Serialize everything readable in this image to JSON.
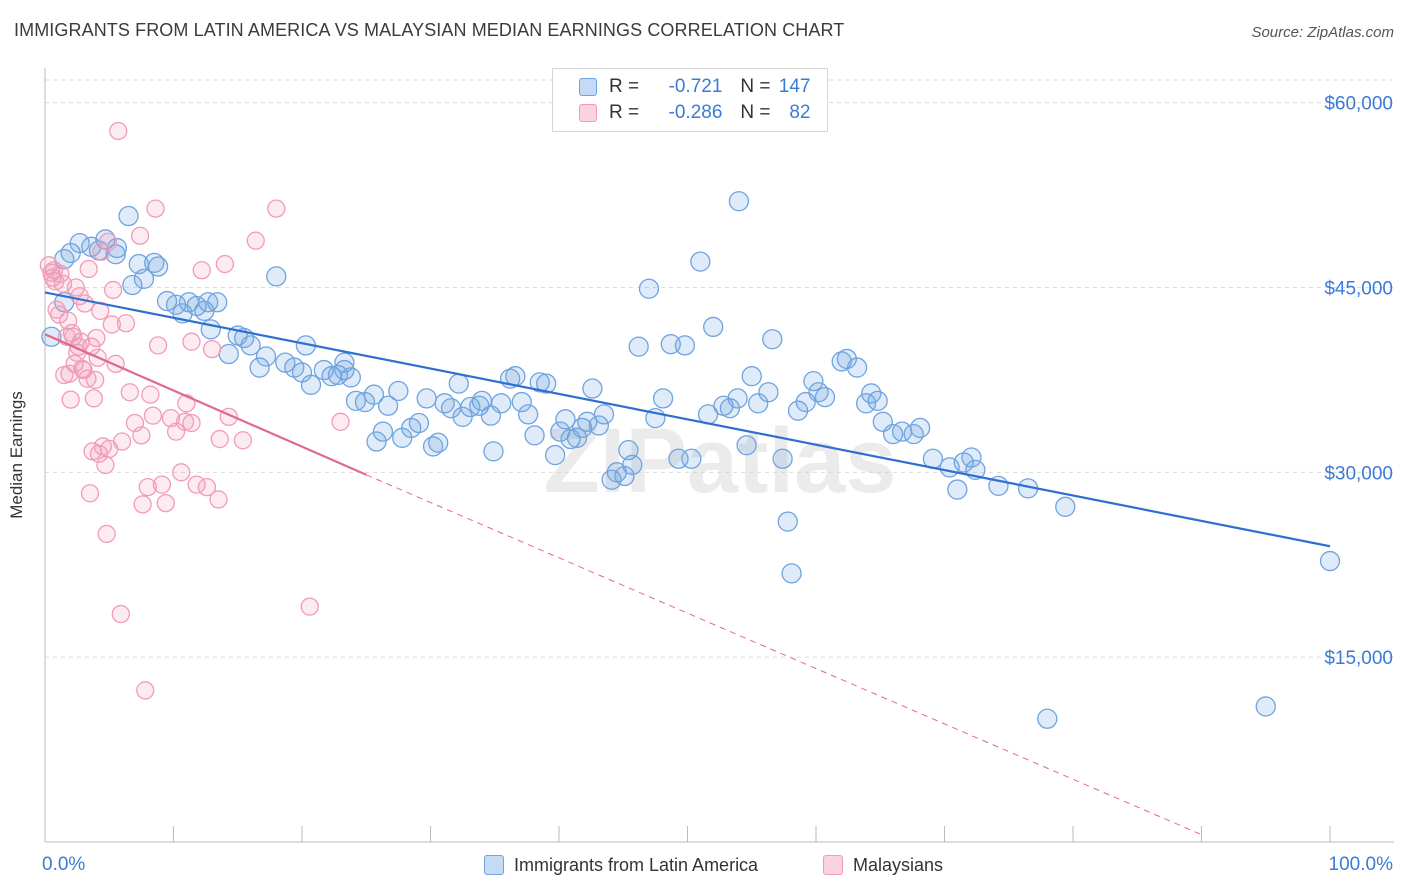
{
  "title": "IMMIGRANTS FROM LATIN AMERICA VS MALAYSIAN MEDIAN EARNINGS CORRELATION CHART",
  "source": "Source: ZipAtlas.com",
  "watermark": "ZIPatlas",
  "colors": {
    "blue": "#6fa4e0",
    "blue_line": "#2f6fd0",
    "pink": "#f29bb8",
    "pink_line": "#e0698f",
    "axis_text": "#3a7bd5",
    "grid": "#dcdcdc"
  },
  "legend": {
    "rows": [
      {
        "r_label": "R =",
        "r_value": "-0.721",
        "n_label": "N =",
        "n_value": "147",
        "color": "blue"
      },
      {
        "r_label": "R =",
        "r_value": "-0.286",
        "n_label": "N =",
        "n_value": "82",
        "color": "pink"
      }
    ]
  },
  "chart_data": {
    "type": "scatter",
    "xlabel": "",
    "ylabel": "Median Earnings",
    "xlim": [
      0,
      100
    ],
    "ylim": [
      0,
      62000
    ],
    "x_tick_labels": [
      "0.0%",
      "100.0%"
    ],
    "y_ticks": [
      15000,
      30000,
      45000,
      60000
    ],
    "y_tick_labels": [
      "$15,000",
      "$30,000",
      "$45,000",
      "$60,000"
    ],
    "grid": "horizontal dashed",
    "legend_position": "top-center",
    "series": [
      {
        "name": "Immigrants from Latin America",
        "color": "blue",
        "trend": {
          "x": [
            0,
            100
          ],
          "y": [
            44600,
            24000
          ]
        },
        "points": [
          [
            0.5,
            41000
          ],
          [
            1.5,
            43800
          ],
          [
            1.5,
            47300
          ],
          [
            2,
            47800
          ],
          [
            2.7,
            48600
          ],
          [
            3.6,
            48300
          ],
          [
            4.2,
            48000
          ],
          [
            4.7,
            48900
          ],
          [
            5.5,
            47700
          ],
          [
            5.6,
            48200
          ],
          [
            6.5,
            50800
          ],
          [
            6.8,
            45200
          ],
          [
            7.3,
            46900
          ],
          [
            7.7,
            45700
          ],
          [
            8.5,
            47000
          ],
          [
            8.8,
            46700
          ],
          [
            9.5,
            43900
          ],
          [
            10.2,
            43600
          ],
          [
            10.7,
            42900
          ],
          [
            11.2,
            43800
          ],
          [
            11.8,
            43500
          ],
          [
            12.4,
            43100
          ],
          [
            12.7,
            43800
          ],
          [
            13.4,
            43800
          ],
          [
            12.9,
            41600
          ],
          [
            14.3,
            39600
          ],
          [
            15.0,
            41100
          ],
          [
            15.5,
            40900
          ],
          [
            16.0,
            40300
          ],
          [
            16.7,
            38500
          ],
          [
            17.2,
            39400
          ],
          [
            18.0,
            45900
          ],
          [
            18.7,
            38900
          ],
          [
            19.4,
            38500
          ],
          [
            20.0,
            38100
          ],
          [
            20.3,
            40300
          ],
          [
            20.7,
            37100
          ],
          [
            21.7,
            38300
          ],
          [
            22.3,
            37800
          ],
          [
            22.8,
            37900
          ],
          [
            23.3,
            38300
          ],
          [
            23.8,
            37700
          ],
          [
            23.3,
            38900
          ],
          [
            24.2,
            35800
          ],
          [
            24.9,
            35700
          ],
          [
            25.6,
            36300
          ],
          [
            25.8,
            32500
          ],
          [
            26.3,
            33300
          ],
          [
            26.7,
            35400
          ],
          [
            27.5,
            36600
          ],
          [
            27.8,
            32800
          ],
          [
            28.5,
            33600
          ],
          [
            29.1,
            34000
          ],
          [
            29.7,
            36000
          ],
          [
            30.2,
            32100
          ],
          [
            30.6,
            32400
          ],
          [
            31.1,
            35600
          ],
          [
            31.6,
            35200
          ],
          [
            32.2,
            37200
          ],
          [
            32.5,
            34500
          ],
          [
            33.1,
            35300
          ],
          [
            33.8,
            35400
          ],
          [
            34.0,
            35800
          ],
          [
            34.7,
            34600
          ],
          [
            34.9,
            31700
          ],
          [
            35.5,
            35600
          ],
          [
            36.2,
            37600
          ],
          [
            36.6,
            37800
          ],
          [
            37.1,
            35700
          ],
          [
            37.6,
            34700
          ],
          [
            38.1,
            33000
          ],
          [
            38.5,
            37300
          ],
          [
            39.0,
            37200
          ],
          [
            39.7,
            31400
          ],
          [
            40.1,
            33300
          ],
          [
            40.5,
            34300
          ],
          [
            40.9,
            32700
          ],
          [
            41.4,
            32800
          ],
          [
            41.8,
            33600
          ],
          [
            42.2,
            34100
          ],
          [
            42.6,
            36800
          ],
          [
            43.1,
            33800
          ],
          [
            43.5,
            34700
          ],
          [
            44.1,
            29400
          ],
          [
            44.5,
            30000
          ],
          [
            45.1,
            29700
          ],
          [
            45.4,
            31800
          ],
          [
            45.7,
            30600
          ],
          [
            46.2,
            40200
          ],
          [
            47.0,
            44900
          ],
          [
            47.5,
            34400
          ],
          [
            48.1,
            36000
          ],
          [
            48.7,
            40400
          ],
          [
            49.3,
            31100
          ],
          [
            49.8,
            40300
          ],
          [
            50.3,
            31100
          ],
          [
            51.0,
            47100
          ],
          [
            51.6,
            34700
          ],
          [
            52.0,
            41800
          ],
          [
            52.8,
            35400
          ],
          [
            53.3,
            35200
          ],
          [
            53.9,
            36000
          ],
          [
            54.0,
            52000
          ],
          [
            54.6,
            32200
          ],
          [
            55.0,
            37800
          ],
          [
            55.5,
            35600
          ],
          [
            56.3,
            36500
          ],
          [
            56.6,
            40800
          ],
          [
            57.4,
            31100
          ],
          [
            57.8,
            26000
          ],
          [
            58.1,
            21800
          ],
          [
            58.6,
            35000
          ],
          [
            59.2,
            35700
          ],
          [
            59.8,
            37400
          ],
          [
            60.2,
            36500
          ],
          [
            60.7,
            36100
          ],
          [
            62.0,
            39000
          ],
          [
            62.4,
            39200
          ],
          [
            63.2,
            38500
          ],
          [
            63.9,
            35600
          ],
          [
            64.3,
            36400
          ],
          [
            64.8,
            35800
          ],
          [
            65.2,
            34100
          ],
          [
            66.0,
            33100
          ],
          [
            66.7,
            33300
          ],
          [
            67.6,
            33100
          ],
          [
            68.1,
            33600
          ],
          [
            69.1,
            31100
          ],
          [
            70.4,
            30400
          ],
          [
            71.0,
            28600
          ],
          [
            71.5,
            30800
          ],
          [
            72.1,
            31200
          ],
          [
            72.4,
            30200
          ],
          [
            74.2,
            28900
          ],
          [
            76.5,
            28700
          ],
          [
            78.0,
            10000
          ],
          [
            79.4,
            27200
          ],
          [
            95.0,
            11000
          ],
          [
            100.0,
            22800
          ]
        ]
      },
      {
        "name": "Malaysians",
        "color": "pink",
        "trend": {
          "x": [
            0,
            25
          ],
          "y": [
            41200,
            29800
          ]
        },
        "trend_extension": {
          "x": [
            25,
            90
          ],
          "y": [
            29800,
            600
          ]
        },
        "points": [
          [
            0.3,
            46800
          ],
          [
            0.5,
            46200
          ],
          [
            0.6,
            45800
          ],
          [
            0.8,
            45500
          ],
          [
            0.9,
            43200
          ],
          [
            1.1,
            42800
          ],
          [
            1.2,
            46100
          ],
          [
            1.5,
            37900
          ],
          [
            1.7,
            41000
          ],
          [
            1.8,
            42300
          ],
          [
            1.9,
            38000
          ],
          [
            2.0,
            35900
          ],
          [
            2.2,
            41000
          ],
          [
            2.3,
            38800
          ],
          [
            2.4,
            45000
          ],
          [
            2.5,
            39700
          ],
          [
            2.6,
            40200
          ],
          [
            2.7,
            44300
          ],
          [
            2.8,
            40600
          ],
          [
            2.9,
            38400
          ],
          [
            3.0,
            38300
          ],
          [
            3.1,
            43700
          ],
          [
            3.3,
            37600
          ],
          [
            3.5,
            28300
          ],
          [
            3.6,
            40200
          ],
          [
            3.7,
            31700
          ],
          [
            3.8,
            36000
          ],
          [
            3.9,
            37500
          ],
          [
            4.0,
            40900
          ],
          [
            4.1,
            39300
          ],
          [
            4.2,
            31500
          ],
          [
            4.3,
            43100
          ],
          [
            4.5,
            32100
          ],
          [
            4.7,
            30600
          ],
          [
            4.8,
            25000
          ],
          [
            4.9,
            48700
          ],
          [
            5.0,
            31900
          ],
          [
            5.2,
            42000
          ],
          [
            5.3,
            44800
          ],
          [
            5.5,
            38800
          ],
          [
            5.7,
            57700
          ],
          [
            5.9,
            18500
          ],
          [
            6.0,
            32500
          ],
          [
            6.3,
            42100
          ],
          [
            6.6,
            36500
          ],
          [
            7.0,
            34000
          ],
          [
            7.4,
            49200
          ],
          [
            7.5,
            33000
          ],
          [
            7.6,
            27400
          ],
          [
            7.8,
            12300
          ],
          [
            8.0,
            28800
          ],
          [
            8.2,
            36300
          ],
          [
            8.4,
            34600
          ],
          [
            8.6,
            51400
          ],
          [
            8.8,
            40300
          ],
          [
            9.1,
            29000
          ],
          [
            9.4,
            27500
          ],
          [
            9.8,
            34400
          ],
          [
            10.2,
            33300
          ],
          [
            10.6,
            30000
          ],
          [
            10.9,
            34100
          ],
          [
            11.0,
            35600
          ],
          [
            11.4,
            34000
          ],
          [
            11.4,
            40600
          ],
          [
            11.8,
            29000
          ],
          [
            12.2,
            46400
          ],
          [
            12.6,
            28800
          ],
          [
            13.0,
            40000
          ],
          [
            13.5,
            27800
          ],
          [
            13.6,
            32700
          ],
          [
            14.0,
            46900
          ],
          [
            14.3,
            34500
          ],
          [
            15.4,
            32600
          ],
          [
            16.4,
            48800
          ],
          [
            18.0,
            51400
          ],
          [
            20.6,
            19100
          ],
          [
            23.0,
            34100
          ],
          [
            3.4,
            46500
          ],
          [
            4.4,
            47900
          ],
          [
            1.4,
            45300
          ],
          [
            0.7,
            46400
          ],
          [
            2.1,
            41300
          ]
        ]
      }
    ]
  }
}
